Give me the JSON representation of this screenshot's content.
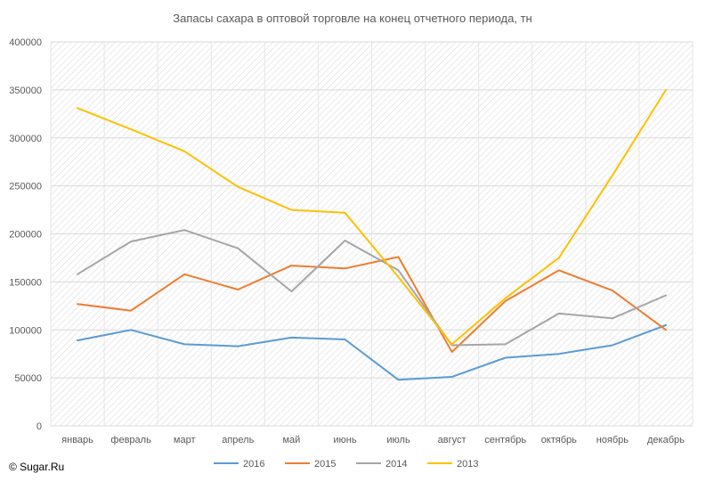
{
  "chart_data": {
    "type": "line",
    "title": "Запасы сахара в оптовой торговле на конец отчетного периода, тн",
    "xlabel": "",
    "ylabel": "",
    "categories": [
      "январь",
      "февраль",
      "март",
      "апрель",
      "май",
      "июнь",
      "июль",
      "август",
      "сентябрь",
      "октябрь",
      "ноябрь",
      "декабрь"
    ],
    "ylim": [
      0,
      400000
    ],
    "yticks": [
      0,
      50000,
      100000,
      150000,
      200000,
      250000,
      300000,
      350000,
      400000
    ],
    "ytick_labels": [
      "0",
      "50000",
      "100000",
      "150000",
      "200000",
      "250000",
      "300000",
      "350000",
      "400000"
    ],
    "grid": true,
    "legend_position": "bottom",
    "series": [
      {
        "name": "2016",
        "color": "#5b9bd5",
        "values": [
          89000,
          100000,
          85000,
          83000,
          92000,
          90000,
          48000,
          51000,
          71000,
          75000,
          84000,
          105000
        ]
      },
      {
        "name": "2015",
        "color": "#ed7d31",
        "values": [
          127000,
          120000,
          158000,
          142000,
          167000,
          164000,
          176000,
          77000,
          130000,
          162000,
          141000,
          100000
        ]
      },
      {
        "name": "2014",
        "color": "#a5a5a5",
        "values": [
          158000,
          192000,
          204000,
          185000,
          140000,
          193000,
          162000,
          84000,
          85000,
          117000,
          112000,
          136000
        ]
      },
      {
        "name": "2013",
        "color": "#ffc000",
        "values": [
          331000,
          309000,
          286000,
          249000,
          225000,
          222000,
          155000,
          85000,
          133000,
          175000,
          261000,
          350000
        ]
      }
    ]
  },
  "footer": {
    "copyright": "© Sugar.Ru"
  }
}
